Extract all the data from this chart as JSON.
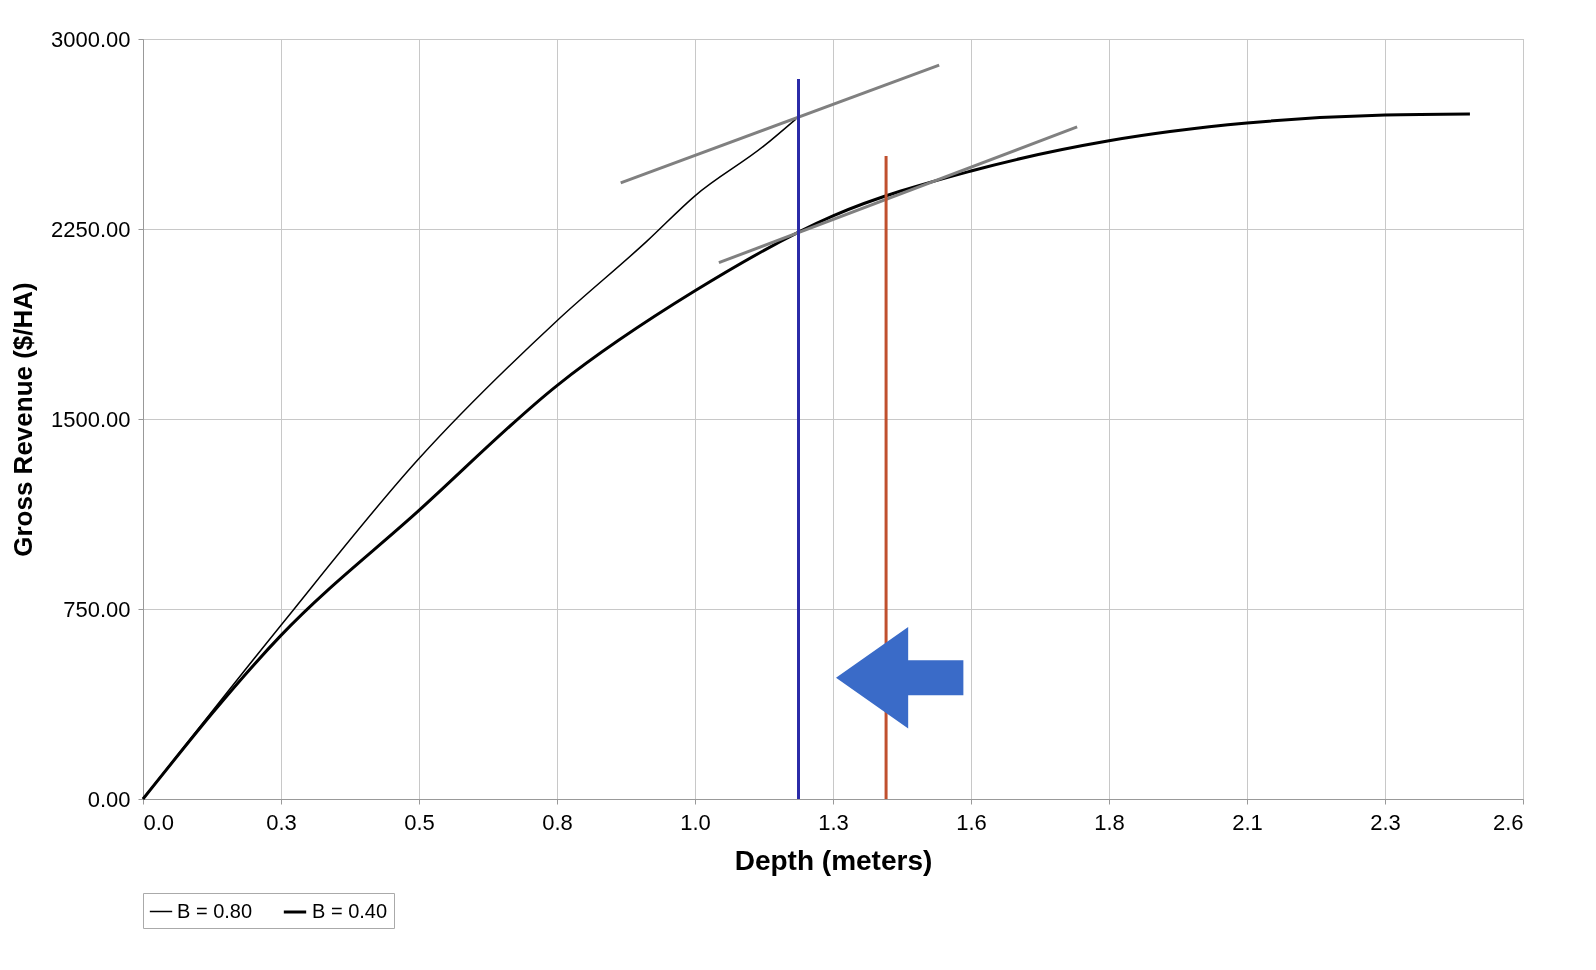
{
  "chart_data": {
    "type": "line",
    "xlabel": "Depth (meters)",
    "ylabel": "Gross Revenue ($/HA)",
    "xlim": [
      0,
      2.6
    ],
    "ylim": [
      0,
      3000
    ],
    "xticks": [
      {
        "value": 0,
        "label": "0.0"
      },
      {
        "value": 0.26,
        "label": "0.3"
      },
      {
        "value": 0.52,
        "label": "0.5"
      },
      {
        "value": 0.78,
        "label": "0.8"
      },
      {
        "value": 1.04,
        "label": "1.0"
      },
      {
        "value": 1.3,
        "label": "1.3"
      },
      {
        "value": 1.56,
        "label": "1.6"
      },
      {
        "value": 1.82,
        "label": "1.8"
      },
      {
        "value": 2.08,
        "label": "2.1"
      },
      {
        "value": 2.34,
        "label": "2.3"
      },
      {
        "value": 2.6,
        "label": "2.6"
      }
    ],
    "yticks": [
      {
        "value": 0,
        "label": "0.00"
      },
      {
        "value": 750,
        "label": "750.00"
      },
      {
        "value": 1500,
        "label": "1500.00"
      },
      {
        "value": 2250,
        "label": "2250.00"
      },
      {
        "value": 3000,
        "label": "3000.00"
      }
    ],
    "grid": true,
    "legend": "bottom",
    "marker": "none",
    "series": [
      {
        "name": "B = 0.80",
        "color": "#000000",
        "x": [
          0,
          0.26,
          0.52,
          0.78,
          0.95,
          1.04,
          1.17,
          1.23
        ],
        "values": [
          0,
          686,
          1344,
          1888,
          2203,
          2381,
          2578,
          2684
        ]
      },
      {
        "name": "B = 0.40",
        "color": "#000000",
        "x": [
          0,
          0.26,
          0.52,
          0.78,
          1.04,
          1.3,
          1.56,
          1.82,
          2.08,
          2.34,
          2.5
        ],
        "values": [
          0,
          646,
          1139,
          1632,
          2006,
          2302,
          2479,
          2598,
          2668,
          2700,
          2704
        ]
      },
      {
        "color": "#808080",
        "x": [
          0.9,
          1.5
        ],
        "values": [
          2432,
          2897
        ]
      },
      {
        "color": "#808080",
        "x": [
          1.085,
          1.76
        ],
        "values": [
          2117,
          2653
        ]
      },
      {
        "color": "#2b2ba8",
        "x": [
          1.235,
          1.235
        ],
        "values": [
          0,
          2842
        ]
      },
      {
        "color": "#c0502e",
        "x": [
          1.4,
          1.4
        ],
        "values": [
          0,
          2538
        ]
      }
    ]
  }
}
